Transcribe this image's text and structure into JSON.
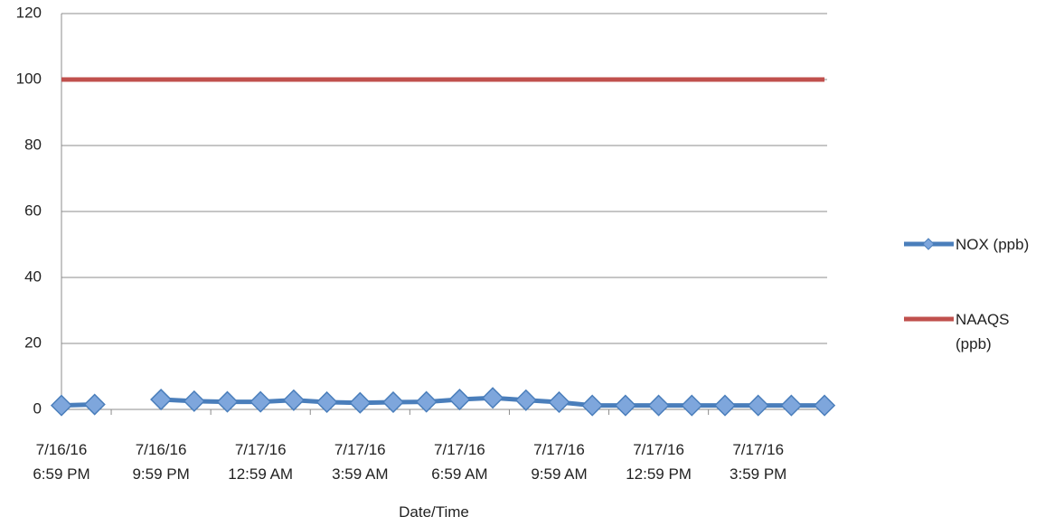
{
  "chart_data": {
    "type": "line",
    "categories": [
      "7/16/16\n6:59 PM",
      null,
      null,
      "7/16/16\n9:59 PM",
      null,
      null,
      "7/17/16\n12:59 AM",
      null,
      null,
      "7/17/16\n3:59 AM",
      null,
      null,
      "7/17/16\n6:59 AM",
      null,
      null,
      "7/17/16\n9:59 AM",
      null,
      null,
      "7/17/16\n12:59 PM",
      null,
      null,
      "7/17/16\n3:59 PM",
      null,
      null
    ],
    "x_label": "Date/Time",
    "series": [
      {
        "name": "NOX (ppb)",
        "color": "#4a7ebb",
        "values": [
          1.2,
          1.5,
          null,
          3,
          2.5,
          2.3,
          2.3,
          2.8,
          2.2,
          2,
          2.2,
          2.3,
          3,
          3.5,
          2.8,
          2.2,
          1.2,
          1.2,
          1.2,
          1.2,
          1.2,
          1.2,
          1.2,
          1.2
        ]
      },
      {
        "name": "NAAQS (ppb)",
        "color": "#c0504d",
        "values": [
          100,
          100,
          100,
          100,
          100,
          100,
          100,
          100,
          100,
          100,
          100,
          100,
          100,
          100,
          100,
          100,
          100,
          100,
          100,
          100,
          100,
          100,
          100,
          100
        ]
      }
    ],
    "ylim": [
      0,
      120
    ],
    "yticks": [
      0,
      20,
      40,
      60,
      80,
      100,
      120
    ],
    "grid": true,
    "legend": "right"
  }
}
